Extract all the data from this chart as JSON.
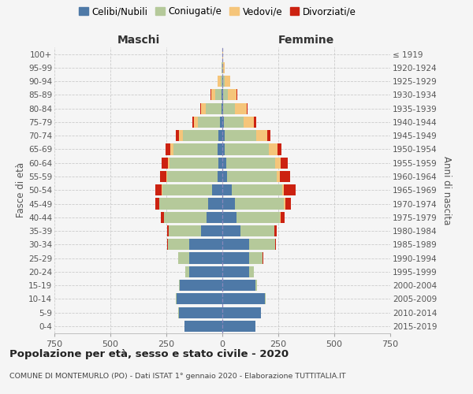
{
  "age_groups": [
    "0-4",
    "5-9",
    "10-14",
    "15-19",
    "20-24",
    "25-29",
    "30-34",
    "35-39",
    "40-44",
    "45-49",
    "50-54",
    "55-59",
    "60-64",
    "65-69",
    "70-74",
    "75-79",
    "80-84",
    "85-89",
    "90-94",
    "95-99",
    "100+"
  ],
  "birth_years": [
    "2015-2019",
    "2010-2014",
    "2005-2009",
    "2000-2004",
    "1995-1999",
    "1990-1994",
    "1985-1989",
    "1980-1984",
    "1975-1979",
    "1970-1974",
    "1965-1969",
    "1960-1964",
    "1955-1959",
    "1950-1954",
    "1945-1949",
    "1940-1944",
    "1935-1939",
    "1930-1934",
    "1925-1929",
    "1920-1924",
    "≤ 1919"
  ],
  "colors": {
    "celibe": "#4e79a7",
    "coniugato": "#b5c99a",
    "vedovo": "#f5c57a",
    "divorziato": "#cc2211"
  },
  "males": {
    "celibe": [
      170,
      195,
      205,
      190,
      148,
      148,
      148,
      95,
      72,
      62,
      45,
      20,
      18,
      22,
      18,
      10,
      5,
      2,
      0,
      0,
      0
    ],
    "coniugato": [
      0,
      2,
      2,
      5,
      18,
      50,
      95,
      145,
      188,
      218,
      222,
      225,
      218,
      198,
      158,
      98,
      68,
      28,
      8,
      2,
      0
    ],
    "vedovo": [
      0,
      0,
      0,
      0,
      0,
      0,
      0,
      0,
      0,
      2,
      4,
      4,
      8,
      14,
      18,
      18,
      22,
      20,
      12,
      3,
      0
    ],
    "divorziato": [
      0,
      0,
      0,
      0,
      0,
      0,
      5,
      8,
      14,
      18,
      28,
      30,
      28,
      18,
      12,
      8,
      5,
      2,
      0,
      0,
      0
    ]
  },
  "females": {
    "celibe": [
      148,
      172,
      190,
      148,
      118,
      118,
      118,
      82,
      65,
      58,
      42,
      22,
      18,
      12,
      10,
      6,
      4,
      2,
      2,
      0,
      0
    ],
    "coniugato": [
      0,
      2,
      2,
      8,
      24,
      62,
      118,
      152,
      192,
      218,
      225,
      222,
      218,
      195,
      142,
      88,
      52,
      22,
      8,
      2,
      0
    ],
    "vedovo": [
      0,
      0,
      0,
      0,
      0,
      0,
      0,
      0,
      2,
      4,
      8,
      14,
      25,
      38,
      48,
      48,
      52,
      40,
      24,
      8,
      2
    ],
    "divorziato": [
      0,
      0,
      0,
      0,
      0,
      2,
      5,
      10,
      18,
      28,
      52,
      45,
      32,
      18,
      15,
      8,
      5,
      2,
      0,
      0,
      0
    ]
  },
  "title": "Popolazione per età, sesso e stato civile - 2020",
  "subtitle": "COMUNE DI MONTEMURLO (PO) - Dati ISTAT 1° gennaio 2020 - Elaborazione TUTTITALIA.IT",
  "label_maschi": "Maschi",
  "label_femmine": "Femmine",
  "ylabel_left": "Fasce di età",
  "ylabel_right": "Anni di nascita",
  "legend_labels": [
    "Celibi/Nubili",
    "Coniugati/e",
    "Vedovi/e",
    "Divorziati/e"
  ],
  "xlim": 750,
  "bg_color": "#f5f5f5"
}
